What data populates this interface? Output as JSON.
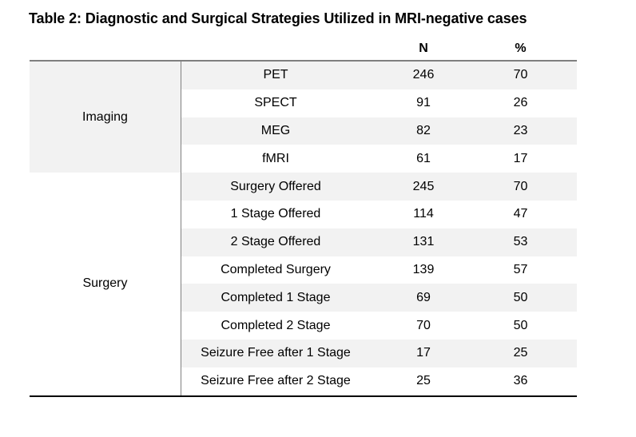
{
  "title": "Table 2: Diagnostic and Surgical Strategies Utilized in MRI-negative cases",
  "header": {
    "n": "N",
    "pct": "%"
  },
  "groups": [
    {
      "label": "Imaging",
      "rows": [
        {
          "item": "PET",
          "n": "246",
          "pct": "70"
        },
        {
          "item": "SPECT",
          "n": "91",
          "pct": "26"
        },
        {
          "item": "MEG",
          "n": "82",
          "pct": "23"
        },
        {
          "item": "fMRI",
          "n": "61",
          "pct": "17"
        }
      ]
    },
    {
      "label": "Surgery",
      "rows": [
        {
          "item": "Surgery Offered",
          "n": "245",
          "pct": "70"
        },
        {
          "item": "1 Stage Offered",
          "n": "114",
          "pct": "47"
        },
        {
          "item": "2 Stage Offered",
          "n": "131",
          "pct": "53"
        },
        {
          "item": "Completed Surgery",
          "n": "139",
          "pct": "57"
        },
        {
          "item": "Completed 1 Stage",
          "n": "69",
          "pct": "50"
        },
        {
          "item": "Completed 2 Stage",
          "n": "70",
          "pct": "50"
        },
        {
          "item": "Seizure Free after 1 Stage",
          "n": "17",
          "pct": "25"
        },
        {
          "item": "Seizure Free after 2 Stage",
          "n": "25",
          "pct": "36"
        }
      ]
    }
  ],
  "colors": {
    "stripe": "#f2f2f2",
    "divider": "#808080",
    "header_rule": "#7f7f7f",
    "bottom_rule": "#000000",
    "text": "#000000"
  }
}
